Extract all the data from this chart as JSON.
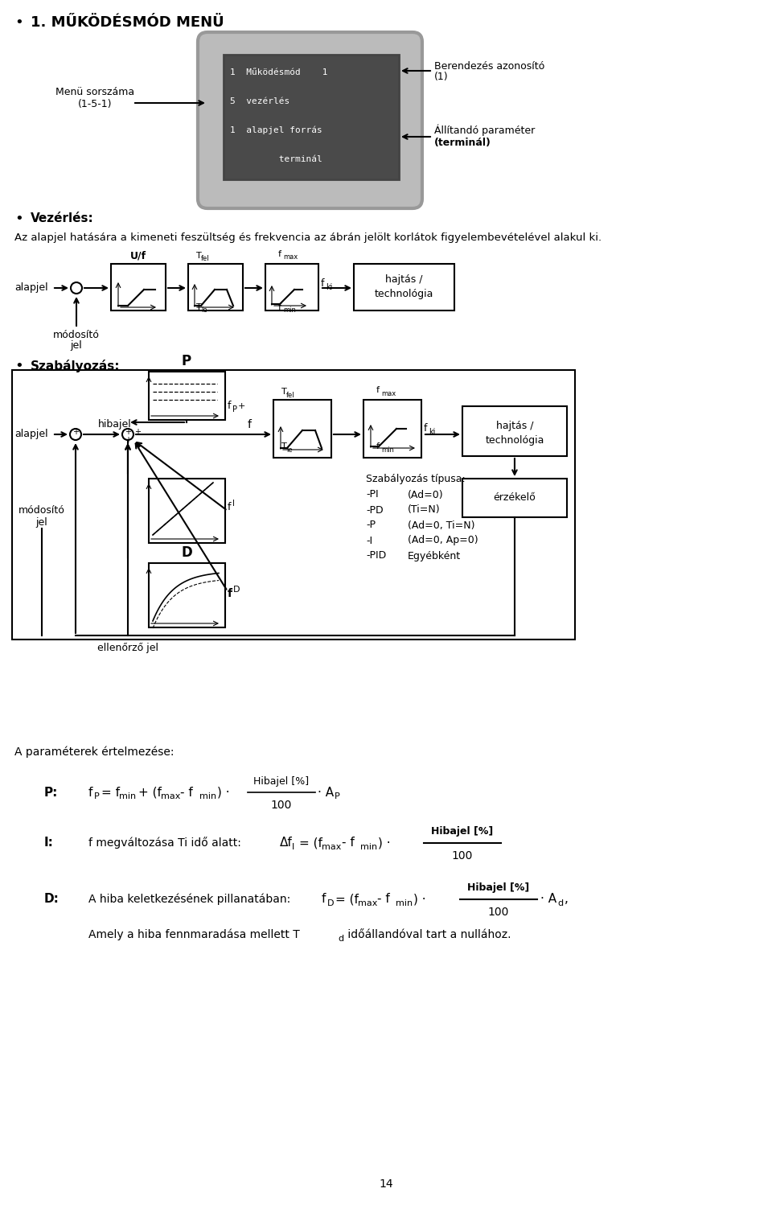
{
  "title": "1. MŰKÖDÉSMÓD MENÜ",
  "background_color": "#ffffff",
  "text_color": "#000000",
  "page_number": "14",
  "vezerlés_bullet": "Vezérlés:",
  "vezerlés_desc": "Az alapjel hatására a kimeneti feszültség és frekvencia az ábrán jelölt korlátok figyelembevételével alakul ki.",
  "szabalyozas_bullet": "Szabályozás:",
  "menu_lines": [
    "1  Működésmód    1",
    "5  vezérlés",
    "1  alapjel forrás",
    "         terminál"
  ],
  "menu_label_left_1": "Menü sorszáma",
  "menu_label_left_2": "(1-5-1)",
  "menu_label_right1_1": "Berendezés azonosító",
  "menu_label_right1_2": "(1)",
  "menu_label_right2_1": "Állítandó paraméter",
  "menu_label_right2_2": "(terminál)",
  "params_title": "A paraméterek értelmezése:",
  "szabalyozas_tipusa_title": "Szabályozás típusa:",
  "szabalyozas_tipusa_items": [
    [
      "-PI",
      "(Ad=0)"
    ],
    [
      "-PD",
      "(Ti=N)"
    ],
    [
      "-P",
      "(Ad=0, Ti=N)"
    ],
    [
      "-I",
      "(Ad=0, Ap=0)"
    ],
    [
      "-PID",
      "Egyébként"
    ]
  ],
  "p_label": "P:",
  "i_label": "I:",
  "d_label": "D:",
  "p_formula_prefix": "f",
  "i_desc": "f megváltozása Ti idő alatt:",
  "d_desc": "A hiba keletk ezésének pillanatában:",
  "d_sub": "Amely a hiba fennmaradása mellett T",
  "d_sub2": " időállandóval tart a nullához.",
  "hibajel_pct": "Hibajel [%]",
  "ellenorzo_jel": "ellenőrző jel",
  "modosito_jel": "módosító\njel",
  "alapjel": "alapjel",
  "hibajel": "hibajel",
  "hajtás_tech": "hajtás /\ntechnológia",
  "erzekelo": "érzékelő",
  "uf_label": "U/f",
  "fP_label": "f",
  "fP_sub": "P",
  "fI_sub": "I",
  "fD_sub": "D",
  "fki_sub": "ki",
  "fmax_sub": "max",
  "fmin_sub": "min",
  "Tfel_sub": "fel",
  "Tle_sub": "le",
  "100_str": "100"
}
